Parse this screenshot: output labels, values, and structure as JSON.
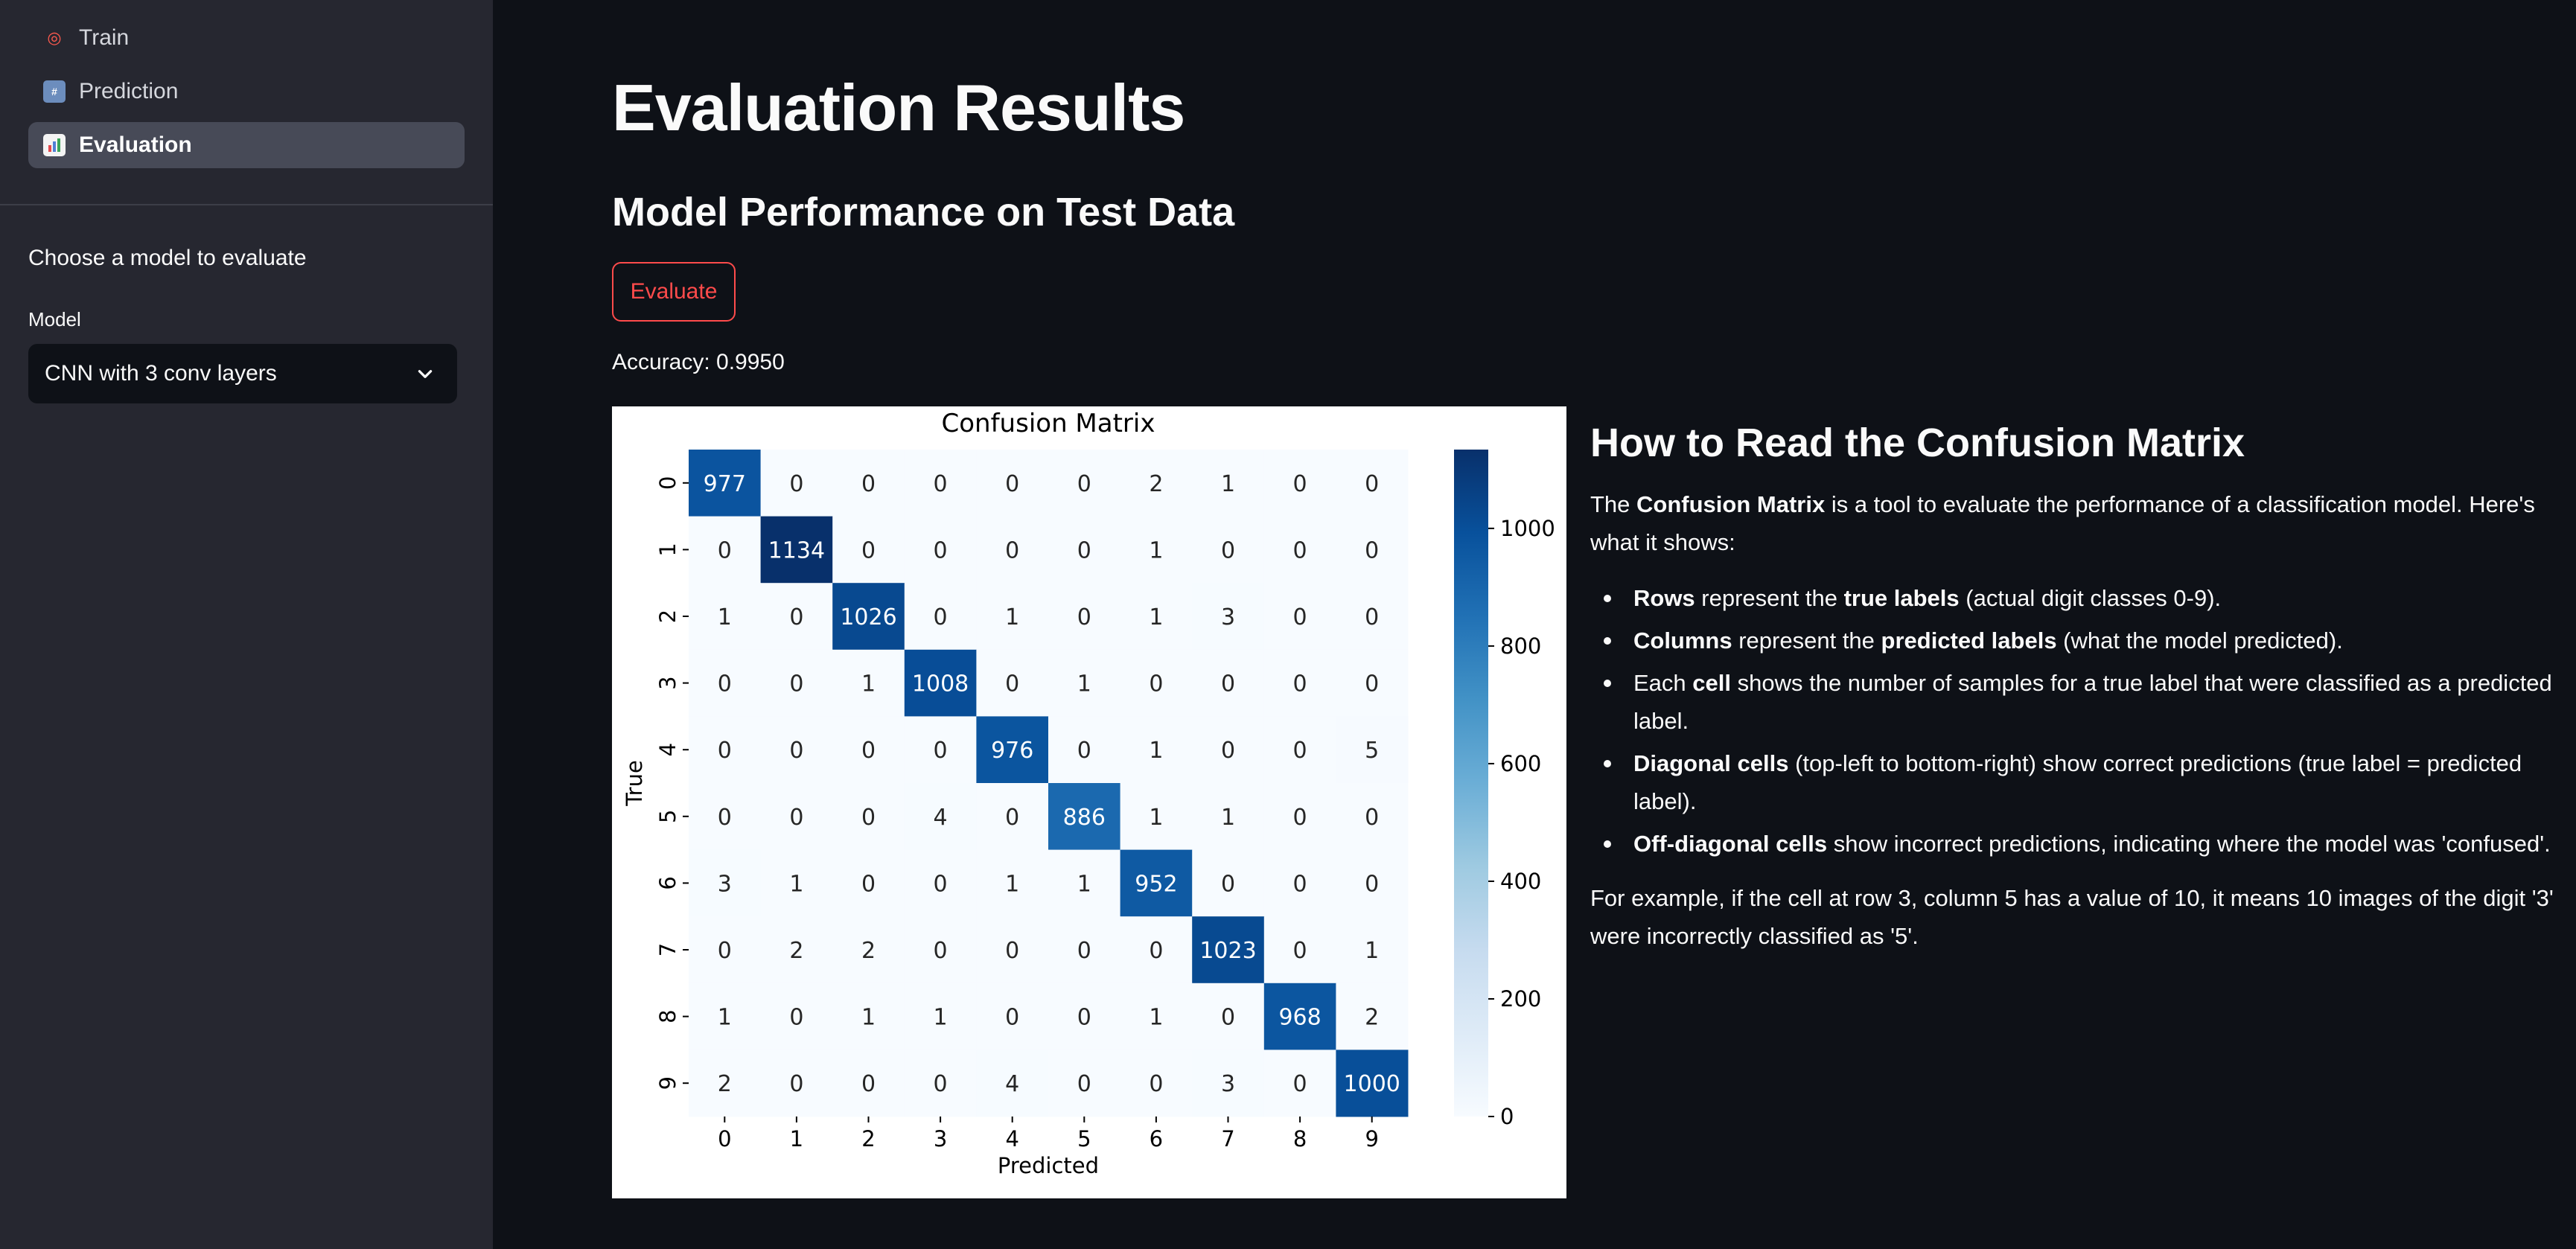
{
  "sidebar": {
    "nav": [
      {
        "label": "Train",
        "icon": "target-icon"
      },
      {
        "label": "Prediction",
        "icon": "numbers-icon"
      },
      {
        "label": "Evaluation",
        "icon": "bar-chart-icon"
      }
    ],
    "heading": "Choose a model to evaluate",
    "model_label": "Model",
    "model_value": "CNN with 3 conv layers"
  },
  "main": {
    "title": "Evaluation Results",
    "subtitle": "Model Performance on Test Data",
    "evaluate_label": "Evaluate",
    "accuracy_text": "Accuracy: 0.9950"
  },
  "explain": {
    "heading": "How to Read the Confusion Matrix",
    "intro_pre": "The ",
    "intro_bold": "Confusion Matrix",
    "intro_post": " is a tool to evaluate the performance of a classification model. Here's what it shows:",
    "b1_bold": "Rows",
    "b1_mid": " represent the ",
    "b1_bold2": "true labels",
    "b1_post": " (actual digit classes 0-9).",
    "b2_bold": "Columns",
    "b2_mid": " represent the ",
    "b2_bold2": "predicted labels",
    "b2_post": " (what the model predicted).",
    "b3_pre": "Each ",
    "b3_bold": "cell",
    "b3_post": " shows the number of samples for a true label that were classified as a predicted label.",
    "b4_bold": "Diagonal cells",
    "b4_post": " (top-left to bottom-right) show correct predictions (true label = predicted label).",
    "b5_bold": "Off-diagonal cells",
    "b5_post": " show incorrect predictions, indicating where the model was 'confused'.",
    "example": "For example, if the cell at row 3, column 5 has a value of 10, it means 10 images of the digit '3' were incorrectly classified as '5'."
  },
  "chart_data": {
    "type": "heatmap",
    "title": "Confusion Matrix",
    "xlabel": "Predicted",
    "ylabel": "True",
    "x_ticks": [
      "0",
      "1",
      "2",
      "3",
      "4",
      "5",
      "6",
      "7",
      "8",
      "9"
    ],
    "y_ticks": [
      "0",
      "1",
      "2",
      "3",
      "4",
      "5",
      "6",
      "7",
      "8",
      "9"
    ],
    "matrix": [
      [
        977,
        0,
        0,
        0,
        0,
        0,
        2,
        1,
        0,
        0
      ],
      [
        0,
        1134,
        0,
        0,
        0,
        0,
        1,
        0,
        0,
        0
      ],
      [
        1,
        0,
        1026,
        0,
        1,
        0,
        1,
        3,
        0,
        0
      ],
      [
        0,
        0,
        1,
        1008,
        0,
        1,
        0,
        0,
        0,
        0
      ],
      [
        0,
        0,
        0,
        0,
        976,
        0,
        1,
        0,
        0,
        5
      ],
      [
        0,
        0,
        0,
        4,
        0,
        886,
        1,
        1,
        0,
        0
      ],
      [
        3,
        1,
        0,
        0,
        1,
        1,
        952,
        0,
        0,
        0
      ],
      [
        0,
        2,
        2,
        0,
        0,
        0,
        0,
        1023,
        0,
        1
      ],
      [
        1,
        0,
        1,
        1,
        0,
        0,
        1,
        0,
        968,
        2
      ],
      [
        2,
        0,
        0,
        0,
        4,
        0,
        0,
        3,
        0,
        1000
      ]
    ],
    "colorbar_ticks": [
      "0",
      "200",
      "400",
      "600",
      "800",
      "1000"
    ],
    "colorbar_range": [
      0,
      1134
    ],
    "colormap": [
      "#f7fbff",
      "#deebf7",
      "#c6dbef",
      "#9ecae1",
      "#6baed6",
      "#4292c6",
      "#2171b5",
      "#08519c",
      "#08306b"
    ]
  }
}
